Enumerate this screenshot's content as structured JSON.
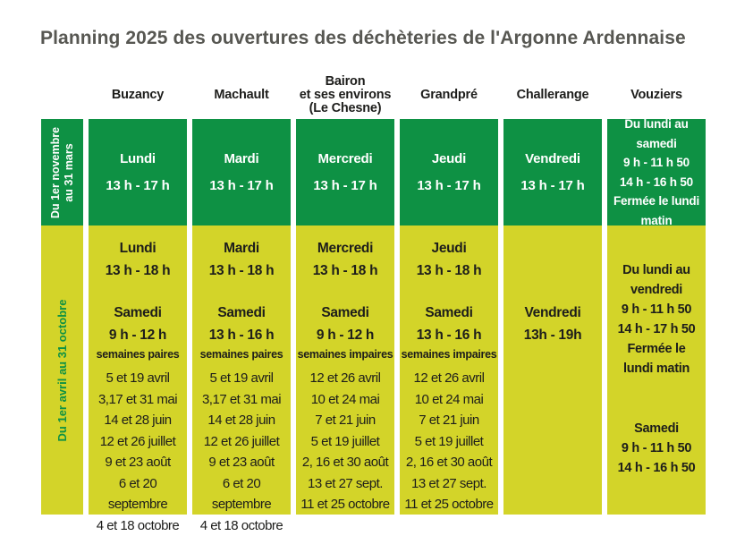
{
  "title": "Planning 2025 des ouvertures des déchèteries de l'Argonne Ardennaise",
  "colors": {
    "green": "#0e9144",
    "yellow": "#d3d429",
    "title": "#575752",
    "dark": "#1d1d1b"
  },
  "row_labels": {
    "winter": "Du 1er novembre\nau 31 mars",
    "summer": "Du 1er avril au 31 octobre"
  },
  "columns": [
    {
      "name": "Buzancy",
      "winter": "Lundi\n13 h - 17 h",
      "summer_main": "Lundi\n13 h - 18 h",
      "summer_saturday": "Samedi\n9 h - 12 h",
      "summer_weeks": "semaines paires",
      "summer_dates": "5 et 19 avril\n3,17 et 31 mai\n14 et 28 juin\n12 et 26 juillet\n9 et 23 août\n6 et 20 septembre\n4 et 18 octobre"
    },
    {
      "name": "Machault",
      "winter": "Mardi\n13 h - 17 h",
      "summer_main": "Mardi\n13 h - 18 h",
      "summer_saturday": "Samedi\n13 h - 16 h",
      "summer_weeks": "semaines paires",
      "summer_dates": "5 et 19 avril\n3,17 et 31 mai\n14 et 28 juin\n12 et 26 juillet\n9 et 23 août\n6 et 20 septembre\n4 et 18 octobre"
    },
    {
      "name": "Bairon\net ses environs\n(Le Chesne)",
      "winter": "Mercredi\n13 h - 17 h",
      "summer_main": "Mercredi\n13 h - 18 h",
      "summer_saturday": "Samedi\n9 h - 12 h",
      "summer_weeks": "semaines impaires",
      "summer_dates": "12 et 26 avril\n10 et 24 mai\n7 et 21 juin\n5 et 19 juillet\n2, 16 et 30 août\n13 et 27 sept.\n11 et 25 octobre"
    },
    {
      "name": "Grandpré",
      "winter": "Jeudi\n13 h - 17 h",
      "summer_main": "Jeudi\n13 h - 18 h",
      "summer_saturday": "Samedi\n13 h - 16 h",
      "summer_weeks": "semaines impaires",
      "summer_dates": "12 et 26 avril\n10 et 24 mai\n7 et 21 juin\n5 et 19 juillet\n2, 16 et 30 août\n13 et 27 sept.\n11 et 25 octobre"
    },
    {
      "name": "Challerange",
      "winter": "Vendredi\n13 h - 17 h",
      "summer_main": "Vendredi\n13h - 19h"
    },
    {
      "name": "Vouziers",
      "winter": "Du lundi au samedi\n9 h - 11 h 50\n14 h - 16 h 50\nFermée le lundi\nmatin",
      "summer_main": "Du lundi au\nvendredi\n9 h - 11 h 50\n14 h - 17 h 50\nFermée le\nlundi matin",
      "summer_saturday": "Samedi\n9 h - 11 h 50\n14 h - 16 h 50"
    }
  ]
}
